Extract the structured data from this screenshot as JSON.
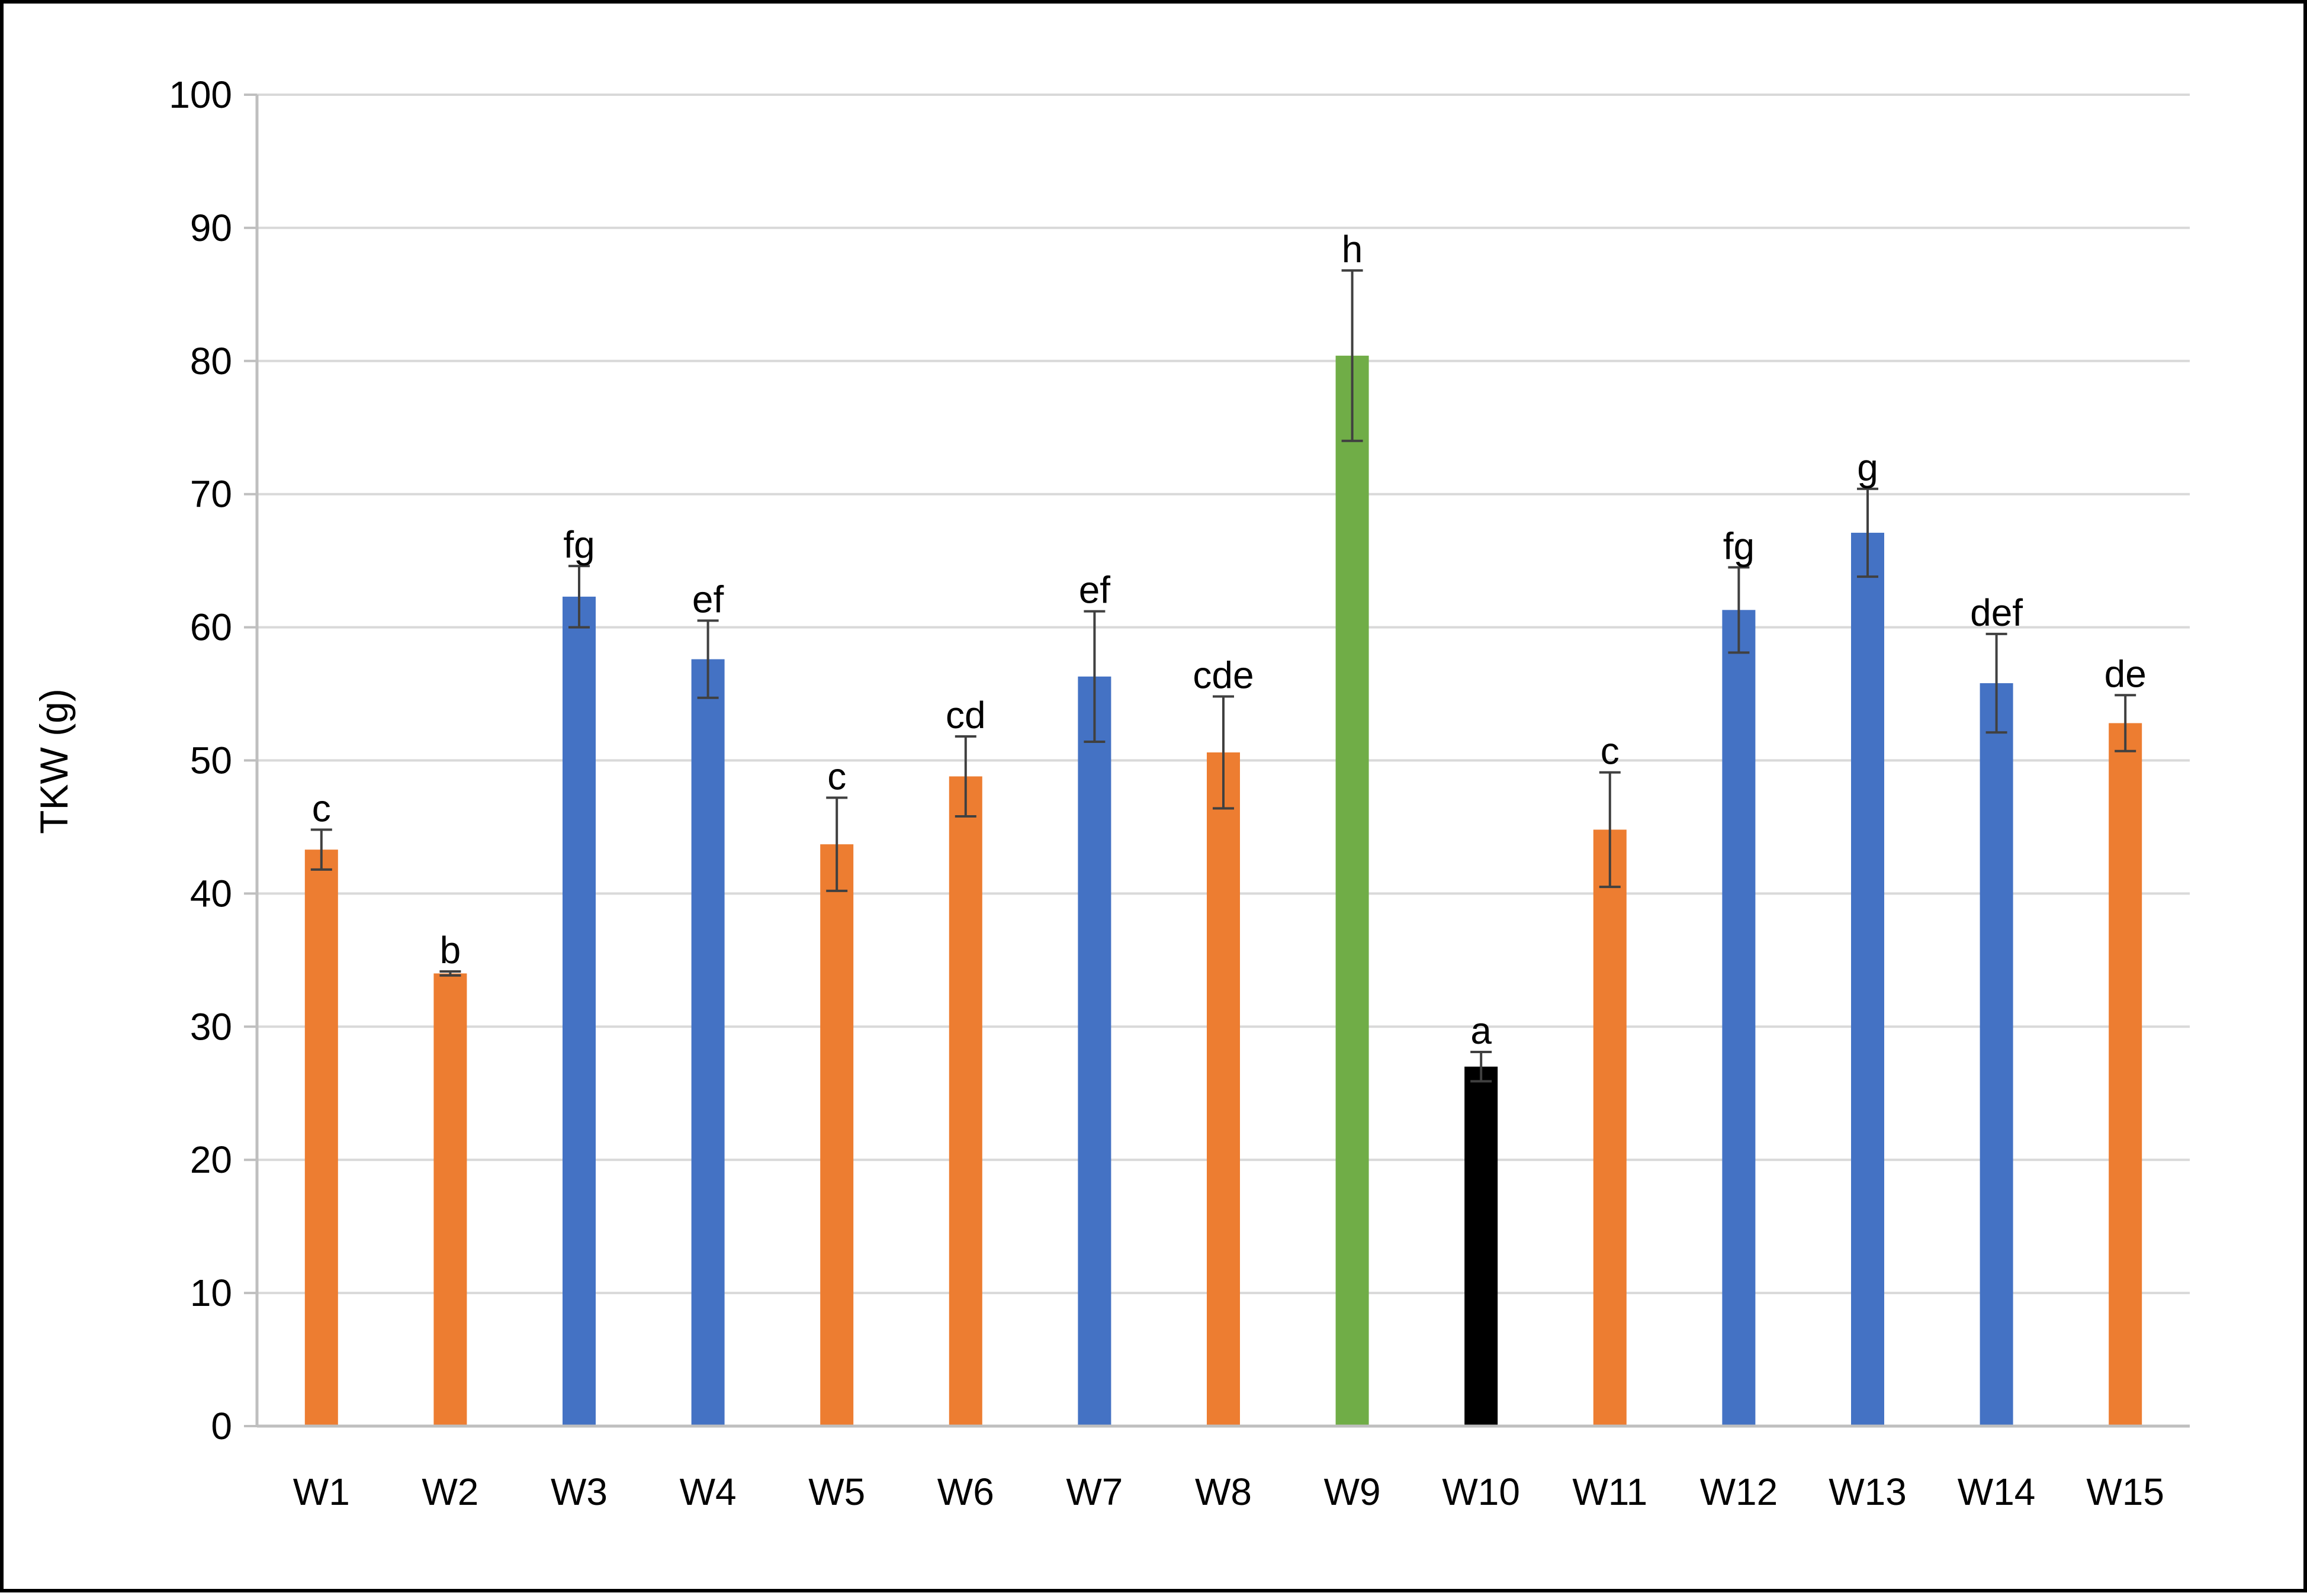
{
  "chart_data": {
    "type": "bar",
    "title": "",
    "xlabel": "",
    "ylabel": "TKW (g)",
    "ylim": [
      0,
      100
    ],
    "yticks": [
      0,
      10,
      20,
      30,
      40,
      50,
      60,
      70,
      80,
      90,
      100
    ],
    "grid": true,
    "legend": "none",
    "categories": [
      "W1",
      "W2",
      "W3",
      "W4",
      "W5",
      "W6",
      "W7",
      "W8",
      "W9",
      "W10",
      "W11",
      "W12",
      "W13",
      "W14",
      "W15"
    ],
    "values": [
      43.3,
      34.0,
      62.3,
      57.6,
      43.7,
      48.8,
      56.3,
      50.6,
      80.4,
      27.0,
      44.8,
      61.3,
      67.1,
      55.8,
      52.8
    ],
    "errors": [
      1.5,
      0.15,
      2.3,
      2.9,
      3.5,
      3.0,
      4.9,
      4.2,
      6.4,
      1.1,
      4.3,
      3.2,
      3.3,
      3.7,
      2.1
    ],
    "significance_letters": [
      "c",
      "b",
      "fg",
      "ef",
      "c",
      "cd",
      "ef",
      "cde",
      "h",
      "a",
      "c",
      "fg",
      "g",
      "def",
      "de"
    ],
    "bar_colors": [
      "#ED7D31",
      "#ED7D31",
      "#4472C4",
      "#4472C4",
      "#ED7D31",
      "#ED7D31",
      "#4472C4",
      "#ED7D31",
      "#70AD47",
      "#000000",
      "#ED7D31",
      "#4472C4",
      "#4472C4",
      "#4472C4",
      "#ED7D31"
    ],
    "gridline_color": "#D9D9D9",
    "axis_color": "#BFBFBF",
    "error_bar_color": "#404040"
  }
}
